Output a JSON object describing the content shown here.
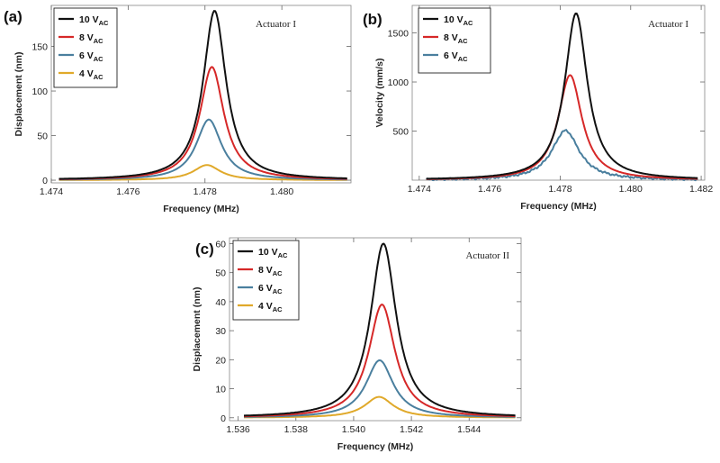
{
  "chart_data": [
    {
      "type": "line",
      "panel_label": "(a)",
      "annotation": "Actuator I",
      "xlabel": "Frequency (MHz)",
      "ylabel": "Displacement (nm)",
      "xlim": [
        1.474,
        1.4818
      ],
      "ylim": [
        -3,
        196
      ],
      "xticks": [
        1.474,
        1.476,
        1.478,
        1.48
      ],
      "xtick_labels": [
        "1.474",
        "1.476",
        "1.478",
        "1.480"
      ],
      "yticks": [
        0,
        50,
        100,
        150
      ],
      "ytick_labels": [
        "0",
        "50",
        "100",
        "150"
      ],
      "x_range": [
        1.4742,
        1.4817
      ],
      "series": [
        {
          "name": "10 V",
          "sub": "AC",
          "color": "#111111",
          "center": 1.47825,
          "width": 0.00072,
          "peak": 190,
          "offset": 0
        },
        {
          "name": "8 V",
          "sub": "AC",
          "color": "#d62828",
          "center": 1.47818,
          "width": 0.00076,
          "peak": 127,
          "offset": 0
        },
        {
          "name": "6 V",
          "sub": "AC",
          "color": "#4a7f9e",
          "center": 1.4781,
          "width": 0.0008,
          "peak": 68,
          "offset": 0
        },
        {
          "name": "4 V",
          "sub": "AC",
          "color": "#e0a92a",
          "center": 1.47805,
          "width": 0.00085,
          "peak": 17,
          "offset": 0
        }
      ]
    },
    {
      "type": "line",
      "panel_label": "(b)",
      "annotation": "Actuator I",
      "xlabel": "Frequency (MHz)",
      "ylabel": "Velocity (mm/s)",
      "xlim": [
        1.4738,
        1.4821
      ],
      "ylim": [
        0,
        1780
      ],
      "xticks": [
        1.474,
        1.476,
        1.478,
        1.48,
        1.482
      ],
      "xtick_labels": [
        "1.474",
        "1.476",
        "1.478",
        "1.480",
        "1.482"
      ],
      "yticks": [
        500,
        1000,
        1500
      ],
      "ytick_labels": [
        "500",
        "1000",
        "1500"
      ],
      "x_range": [
        1.4742,
        1.4819
      ],
      "series": [
        {
          "name": "10 V",
          "sub": "AC",
          "color": "#111111",
          "center": 1.47845,
          "width": 0.00078,
          "peak": 1700,
          "offset": 0
        },
        {
          "name": "8 V",
          "sub": "AC",
          "color": "#d62828",
          "center": 1.47828,
          "width": 0.00082,
          "peak": 1070,
          "offset": 0
        },
        {
          "name": "6 V",
          "sub": "AC",
          "color": "#4a7f9e",
          "center": 1.47815,
          "width": 0.00095,
          "peak": 505,
          "offset": 0
        }
      ]
    },
    {
      "type": "line",
      "panel_label": "(c)",
      "annotation": "Actuator II",
      "xlabel": "Frequency (MHz)",
      "ylabel": "Displacement (nm)",
      "xlim": [
        1.5357,
        1.5458
      ],
      "ylim": [
        -1,
        62
      ],
      "xticks": [
        1.536,
        1.538,
        1.54,
        1.542,
        1.544
      ],
      "xtick_labels": [
        "1.536",
        "1.538",
        "1.540",
        "1.542",
        "1.544"
      ],
      "yticks": [
        0,
        10,
        20,
        30,
        40,
        50,
        60
      ],
      "ytick_labels": [
        "0",
        "10",
        "20",
        "30",
        "40",
        "50",
        "60"
      ],
      "x_range": [
        1.5362,
        1.5456
      ],
      "series": [
        {
          "name": "10 V",
          "sub": "AC",
          "color": "#111111",
          "center": 1.54103,
          "width": 0.00108,
          "peak": 60,
          "offset": 0
        },
        {
          "name": "8 V",
          "sub": "AC",
          "color": "#d62828",
          "center": 1.54098,
          "width": 0.0011,
          "peak": 39,
          "offset": 0
        },
        {
          "name": "6 V",
          "sub": "AC",
          "color": "#4a7f9e",
          "center": 1.5409,
          "width": 0.00115,
          "peak": 19.8,
          "offset": 0
        },
        {
          "name": "4 V",
          "sub": "AC",
          "color": "#e0a92a",
          "center": 1.54088,
          "width": 0.0012,
          "peak": 7.2,
          "offset": 0
        }
      ]
    }
  ]
}
